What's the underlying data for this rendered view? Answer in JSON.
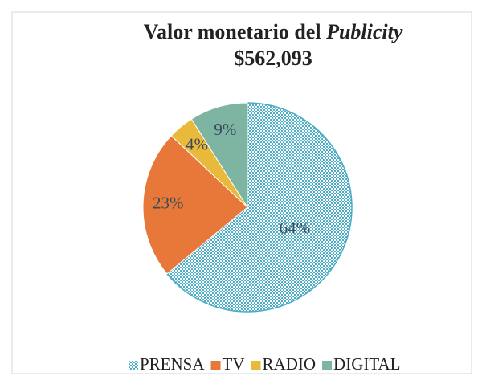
{
  "chart_data": {
    "type": "pie",
    "title": "Valor monetario del",
    "title_emphasis": "Publicity",
    "subtitle": "$562,093",
    "categories": [
      "PRENSA",
      "TV",
      "RADIO",
      "DIGITAL"
    ],
    "values": [
      64,
      23,
      4,
      9
    ],
    "value_labels": [
      "64%",
      "23%",
      "4%",
      "9%"
    ],
    "colors": [
      "#4bacc6",
      "#e8783a",
      "#e9b93c",
      "#7db4a2"
    ],
    "hatched": [
      true,
      false,
      false,
      false
    ],
    "legend": "bottom"
  }
}
